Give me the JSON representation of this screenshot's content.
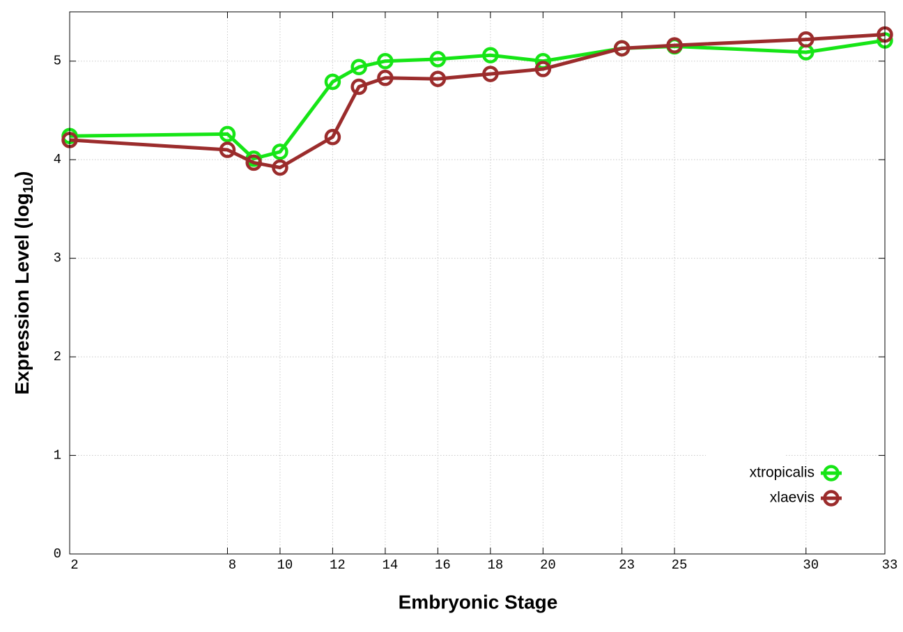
{
  "chart_data": {
    "type": "line",
    "xlabel": "Embryonic Stage",
    "ylabel": {
      "text": "Expression Level (log",
      "subscript": "10",
      "suffix": ")"
    },
    "x": [
      2,
      8,
      9,
      10,
      12,
      13,
      14,
      16,
      18,
      20,
      23,
      25,
      30,
      33
    ],
    "series": [
      {
        "name": "xtropicalis",
        "color": "#16e516",
        "values": [
          4.24,
          4.26,
          4.01,
          4.08,
          4.79,
          4.94,
          5.0,
          5.02,
          5.06,
          5.0,
          5.13,
          5.15,
          5.09,
          5.21
        ]
      },
      {
        "name": "xlaevis",
        "color": "#9b2c2c",
        "values": [
          4.2,
          4.1,
          3.97,
          3.92,
          4.23,
          4.74,
          4.83,
          4.82,
          4.87,
          4.92,
          5.13,
          5.16,
          5.22,
          5.27
        ]
      }
    ],
    "xlim": [
      2,
      33
    ],
    "xticks": [
      2,
      8,
      10,
      12,
      14,
      16,
      18,
      20,
      23,
      25,
      30,
      33
    ],
    "ylim": [
      0,
      5.5
    ],
    "yticks": [
      0,
      1,
      2,
      3,
      4,
      5
    ],
    "grid": true,
    "legend": "bottom right"
  }
}
